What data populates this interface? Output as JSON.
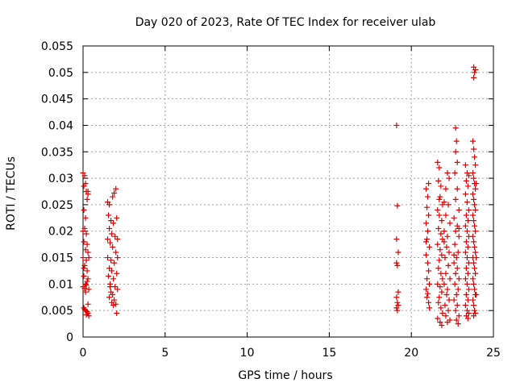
{
  "chart_data": {
    "type": "scatter",
    "title": "Day 020 of 2023, Rate Of TEC Index for receiver ulab",
    "xlabel": "GPS time / hours",
    "ylabel": "ROTI / TECUs",
    "xlim": [
      0,
      25
    ],
    "ylim": [
      0,
      0.055
    ],
    "x_ticks": [
      0,
      5,
      10,
      15,
      20,
      25
    ],
    "x_tick_labels": [
      "0",
      "5",
      "10",
      "15",
      "20",
      "25"
    ],
    "y_ticks": [
      0,
      0.005,
      0.01,
      0.015,
      0.02,
      0.025,
      0.03,
      0.035,
      0.04,
      0.045,
      0.05,
      0.055
    ],
    "y_tick_labels": [
      "0",
      "0.005",
      "0.01",
      "0.015",
      "0.02",
      "0.025",
      "0.03",
      "0.035",
      "0.04",
      "0.045",
      "0.05",
      "0.055"
    ],
    "grid": true,
    "marker": "+",
    "marker_color": "#e00000",
    "series": [
      {
        "points": [
          [
            0.0,
            0.031
          ],
          [
            0.05,
            0.0285
          ],
          [
            0.1,
            0.0305
          ],
          [
            0.15,
            0.029
          ],
          [
            0.2,
            0.0275
          ],
          [
            0.25,
            0.026
          ],
          [
            0.05,
            0.024
          ],
          [
            0.15,
            0.0225
          ],
          [
            0.3,
            0.027
          ],
          [
            0.1,
            0.0205
          ],
          [
            0.2,
            0.0195
          ],
          [
            0.05,
            0.018
          ],
          [
            0.25,
            0.0175
          ],
          [
            0.15,
            0.0165
          ],
          [
            0.3,
            0.016
          ],
          [
            0.0,
            0.015
          ],
          [
            0.2,
            0.0145
          ],
          [
            0.1,
            0.0135
          ],
          [
            0.25,
            0.0125
          ],
          [
            0.05,
            0.0115
          ],
          [
            0.3,
            0.011
          ],
          [
            0.15,
            0.01
          ],
          [
            0.0,
            0.0095
          ],
          [
            0.2,
            0.0098
          ],
          [
            0.1,
            0.0092
          ],
          [
            0.25,
            0.0105
          ],
          [
            0.35,
            0.009
          ],
          [
            0.05,
            0.0055
          ],
          [
            0.15,
            0.005
          ],
          [
            0.25,
            0.0048
          ],
          [
            0.3,
            0.0045
          ],
          [
            0.2,
            0.0042
          ],
          [
            0.35,
            0.004
          ],
          [
            0.1,
            0.0052
          ],
          [
            0.3,
            0.0275
          ],
          [
            0.0,
            0.02
          ],
          [
            0.35,
            0.015
          ],
          [
            0.05,
            0.013
          ],
          [
            0.15,
            0.0085
          ],
          [
            0.3,
            0.0062
          ]
        ]
      },
      {
        "points": [
          [
            1.5,
            0.0255
          ],
          [
            1.6,
            0.025
          ],
          [
            1.8,
            0.0265
          ],
          [
            2.0,
            0.028
          ],
          [
            1.9,
            0.0272
          ],
          [
            1.55,
            0.023
          ],
          [
            1.7,
            0.022
          ],
          [
            1.85,
            0.0215
          ],
          [
            2.05,
            0.0225
          ],
          [
            1.6,
            0.0205
          ],
          [
            1.75,
            0.0195
          ],
          [
            1.95,
            0.019
          ],
          [
            2.1,
            0.0185
          ],
          [
            1.65,
            0.0178
          ],
          [
            1.8,
            0.017
          ],
          [
            2.0,
            0.016
          ],
          [
            1.5,
            0.015
          ],
          [
            1.7,
            0.0145
          ],
          [
            1.9,
            0.014
          ],
          [
            1.6,
            0.013
          ],
          [
            1.75,
            0.0125
          ],
          [
            2.05,
            0.012
          ],
          [
            1.55,
            0.0115
          ],
          [
            1.85,
            0.011
          ],
          [
            1.65,
            0.01
          ],
          [
            1.95,
            0.0095
          ],
          [
            2.1,
            0.009
          ],
          [
            1.7,
            0.0085
          ],
          [
            1.8,
            0.008
          ],
          [
            1.6,
            0.0075
          ],
          [
            1.9,
            0.007
          ],
          [
            1.75,
            0.0065
          ],
          [
            2.0,
            0.0062
          ],
          [
            2.05,
            0.0045
          ],
          [
            1.85,
            0.006
          ],
          [
            1.5,
            0.0185
          ],
          [
            2.1,
            0.015
          ],
          [
            1.65,
            0.0095
          ]
        ]
      },
      {
        "points": [
          [
            19.1,
            0.04
          ],
          [
            19.15,
            0.0248
          ],
          [
            19.1,
            0.0185
          ],
          [
            19.2,
            0.016
          ],
          [
            19.1,
            0.014
          ],
          [
            19.15,
            0.0135
          ],
          [
            19.2,
            0.0085
          ],
          [
            19.1,
            0.0075
          ],
          [
            19.15,
            0.0065
          ],
          [
            19.2,
            0.006
          ],
          [
            19.1,
            0.0055
          ],
          [
            19.15,
            0.005
          ]
        ]
      },
      {
        "points": [
          [
            20.9,
            0.028
          ],
          [
            21.0,
            0.0265
          ],
          [
            20.95,
            0.0245
          ],
          [
            21.05,
            0.023
          ],
          [
            20.9,
            0.0215
          ],
          [
            21.0,
            0.02
          ],
          [
            20.95,
            0.0185
          ],
          [
            21.1,
            0.017
          ],
          [
            20.9,
            0.0155
          ],
          [
            21.0,
            0.014
          ],
          [
            21.05,
            0.0125
          ],
          [
            20.95,
            0.011
          ],
          [
            21.1,
            0.01
          ],
          [
            20.9,
            0.009
          ],
          [
            21.0,
            0.0082
          ],
          [
            20.95,
            0.0075
          ],
          [
            21.05,
            0.0065
          ],
          [
            21.1,
            0.0055
          ],
          [
            20.9,
            0.018
          ],
          [
            21.05,
            0.029
          ],
          [
            21.6,
            0.033
          ],
          [
            21.7,
            0.032
          ],
          [
            21.65,
            0.0295
          ],
          [
            21.8,
            0.0285
          ],
          [
            21.75,
            0.0265
          ],
          [
            21.9,
            0.025
          ],
          [
            21.6,
            0.024
          ],
          [
            21.7,
            0.023
          ],
          [
            21.85,
            0.022
          ],
          [
            21.65,
            0.0205
          ],
          [
            21.8,
            0.0195
          ],
          [
            21.9,
            0.0185
          ],
          [
            21.6,
            0.0175
          ],
          [
            21.75,
            0.0165
          ],
          [
            21.85,
            0.0155
          ],
          [
            21.7,
            0.0145
          ],
          [
            21.65,
            0.013
          ],
          [
            21.8,
            0.012
          ],
          [
            21.9,
            0.011
          ],
          [
            21.6,
            0.01
          ],
          [
            21.75,
            0.0095
          ],
          [
            21.85,
            0.0085
          ],
          [
            21.7,
            0.0075
          ],
          [
            21.65,
            0.0065
          ],
          [
            21.8,
            0.0055
          ],
          [
            21.9,
            0.0045
          ],
          [
            21.6,
            0.0035
          ],
          [
            21.75,
            0.0028
          ],
          [
            21.85,
            0.0022
          ],
          [
            21.7,
            0.026
          ],
          [
            22.0,
            0.0255
          ],
          [
            22.2,
            0.031
          ],
          [
            22.1,
            0.028
          ],
          [
            22.3,
            0.03
          ],
          [
            22.25,
            0.025
          ],
          [
            22.1,
            0.023
          ],
          [
            22.35,
            0.0215
          ],
          [
            22.0,
            0.02
          ],
          [
            22.2,
            0.019
          ],
          [
            22.15,
            0.017
          ],
          [
            22.3,
            0.016
          ],
          [
            22.05,
            0.015
          ],
          [
            22.25,
            0.0135
          ],
          [
            22.1,
            0.012
          ],
          [
            22.35,
            0.011
          ],
          [
            22.0,
            0.01
          ],
          [
            22.2,
            0.009
          ],
          [
            22.15,
            0.008
          ],
          [
            22.3,
            0.007
          ],
          [
            22.05,
            0.006
          ],
          [
            22.25,
            0.005
          ],
          [
            22.1,
            0.004
          ],
          [
            22.35,
            0.0032
          ],
          [
            22.2,
            0.0028
          ],
          [
            22.0,
            0.018
          ]
        ]
      },
      {
        "points": [
          [
            22.7,
            0.0395
          ],
          [
            22.75,
            0.037
          ],
          [
            22.7,
            0.035
          ],
          [
            22.8,
            0.033
          ],
          [
            22.65,
            0.031
          ],
          [
            22.8,
            0.028
          ],
          [
            22.7,
            0.026
          ],
          [
            22.9,
            0.024
          ],
          [
            22.6,
            0.0225
          ],
          [
            22.8,
            0.021
          ],
          [
            22.7,
            0.02
          ],
          [
            22.9,
            0.019
          ],
          [
            22.65,
            0.0175
          ],
          [
            22.85,
            0.016
          ],
          [
            22.75,
            0.015
          ],
          [
            22.6,
            0.014
          ],
          [
            22.8,
            0.013
          ],
          [
            22.7,
            0.012
          ],
          [
            22.9,
            0.011
          ],
          [
            22.65,
            0.01
          ],
          [
            22.85,
            0.009
          ],
          [
            22.75,
            0.008
          ],
          [
            22.6,
            0.007
          ],
          [
            22.8,
            0.006
          ],
          [
            22.7,
            0.005
          ],
          [
            22.9,
            0.004
          ],
          [
            22.75,
            0.0032
          ],
          [
            22.85,
            0.0025
          ],
          [
            22.6,
            0.0155
          ],
          [
            22.9,
            0.0205
          ]
        ]
      },
      {
        "points": [
          [
            23.3,
            0.0325
          ],
          [
            23.4,
            0.031
          ],
          [
            23.35,
            0.0295
          ],
          [
            23.5,
            0.0305
          ],
          [
            23.45,
            0.0285
          ],
          [
            23.3,
            0.027
          ],
          [
            23.4,
            0.0255
          ],
          [
            23.5,
            0.024
          ],
          [
            23.35,
            0.023
          ],
          [
            23.45,
            0.022
          ],
          [
            23.3,
            0.021
          ],
          [
            23.4,
            0.02
          ],
          [
            23.5,
            0.019
          ],
          [
            23.35,
            0.018
          ],
          [
            23.45,
            0.017
          ],
          [
            23.3,
            0.016
          ],
          [
            23.4,
            0.015
          ],
          [
            23.5,
            0.014
          ],
          [
            23.35,
            0.013
          ],
          [
            23.45,
            0.012
          ],
          [
            23.3,
            0.011
          ],
          [
            23.4,
            0.01
          ],
          [
            23.5,
            0.009
          ],
          [
            23.35,
            0.008
          ],
          [
            23.45,
            0.007
          ],
          [
            23.3,
            0.006
          ],
          [
            23.4,
            0.005
          ],
          [
            23.5,
            0.0045
          ],
          [
            23.35,
            0.004
          ],
          [
            23.45,
            0.0035
          ]
        ]
      },
      {
        "points": [
          [
            23.8,
            0.051
          ],
          [
            23.85,
            0.05
          ],
          [
            23.8,
            0.049
          ],
          [
            23.9,
            0.0505
          ],
          [
            23.75,
            0.037
          ],
          [
            23.8,
            0.0355
          ],
          [
            23.85,
            0.034
          ],
          [
            23.9,
            0.0325
          ],
          [
            23.75,
            0.031
          ],
          [
            23.8,
            0.03
          ],
          [
            23.85,
            0.029
          ],
          [
            23.9,
            0.028
          ],
          [
            23.75,
            0.027
          ],
          [
            23.8,
            0.026
          ],
          [
            23.85,
            0.025
          ],
          [
            23.9,
            0.024
          ],
          [
            23.75,
            0.023
          ],
          [
            23.8,
            0.022
          ],
          [
            23.85,
            0.021
          ],
          [
            23.9,
            0.02
          ],
          [
            23.75,
            0.019
          ],
          [
            23.8,
            0.018
          ],
          [
            23.85,
            0.017
          ],
          [
            23.9,
            0.016
          ],
          [
            23.75,
            0.015
          ],
          [
            23.8,
            0.014
          ],
          [
            23.85,
            0.013
          ],
          [
            23.9,
            0.012
          ],
          [
            23.75,
            0.011
          ],
          [
            23.8,
            0.01
          ],
          [
            23.85,
            0.009
          ],
          [
            23.9,
            0.008
          ],
          [
            23.75,
            0.007
          ],
          [
            23.8,
            0.006
          ],
          [
            23.85,
            0.005
          ],
          [
            23.9,
            0.0045
          ],
          [
            23.8,
            0.004
          ],
          [
            23.95,
            0.029
          ],
          [
            23.95,
            0.015
          ],
          [
            23.95,
            0.008
          ]
        ]
      }
    ]
  }
}
